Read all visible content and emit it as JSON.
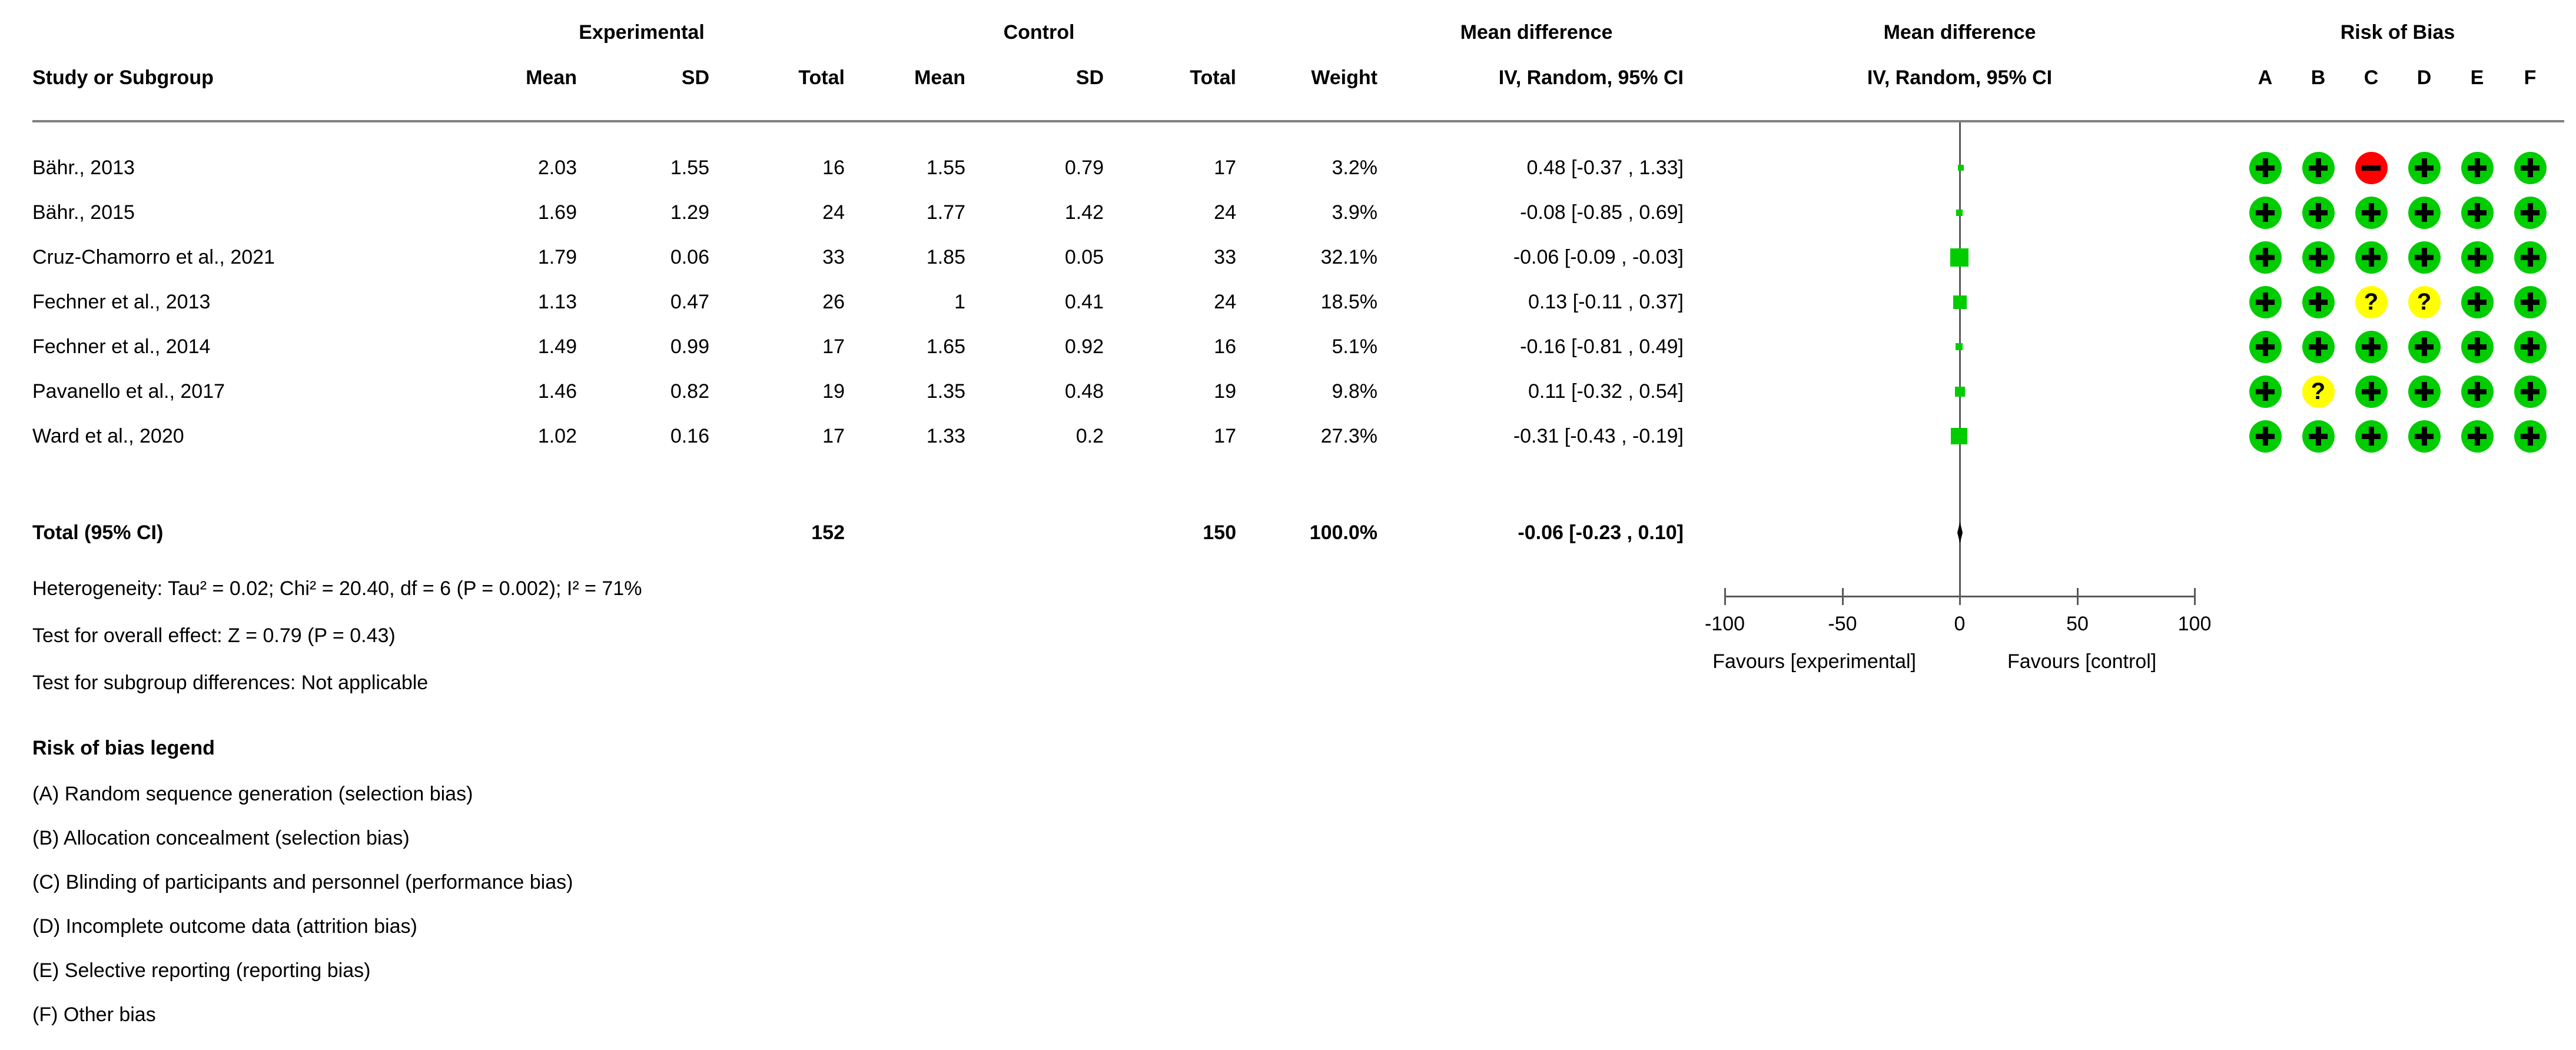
{
  "group_headers": {
    "experimental": "Experimental",
    "control": "Control",
    "mean_difference_text": "Mean difference",
    "mean_difference_plot": "Mean difference",
    "risk_of_bias": "Risk of Bias"
  },
  "col_headers": {
    "study": "Study or Subgroup",
    "mean": "Mean",
    "sd": "SD",
    "total": "Total",
    "weight": "Weight",
    "iv_random": "IV, Random, 95% CI",
    "iv_random_plot": "IV, Random, 95% CI",
    "rob_letters": [
      "A",
      "B",
      "C",
      "D",
      "E",
      "F"
    ]
  },
  "rows": [
    {
      "study": "Bähr., 2013",
      "mean_e": "2.03",
      "sd_e": "1.55",
      "total_e": "16",
      "mean_c": "1.55",
      "sd_c": "0.79",
      "total_c": "17",
      "weight": "3.2%",
      "ci": "0.48 [-0.37 , 1.33]",
      "effect": 0.48,
      "rob": [
        "low",
        "low",
        "high",
        "low",
        "low",
        "low"
      ]
    },
    {
      "study": "Bähr., 2015",
      "mean_e": "1.69",
      "sd_e": "1.29",
      "total_e": "24",
      "mean_c": "1.77",
      "sd_c": "1.42",
      "total_c": "24",
      "weight": "3.9%",
      "ci": "-0.08 [-0.85 , 0.69]",
      "effect": -0.08,
      "rob": [
        "low",
        "low",
        "low",
        "low",
        "low",
        "low"
      ]
    },
    {
      "study": "Cruz-Chamorro et al., 2021",
      "mean_e": "1.79",
      "sd_e": "0.06",
      "total_e": "33",
      "mean_c": "1.85",
      "sd_c": "0.05",
      "total_c": "33",
      "weight": "32.1%",
      "ci": "-0.06 [-0.09 , -0.03]",
      "effect": -0.06,
      "rob": [
        "low",
        "low",
        "low",
        "low",
        "low",
        "low"
      ]
    },
    {
      "study": "Fechner et al., 2013",
      "mean_e": "1.13",
      "sd_e": "0.47",
      "total_e": "26",
      "mean_c": "1",
      "sd_c": "0.41",
      "total_c": "24",
      "weight": "18.5%",
      "ci": "0.13 [-0.11 , 0.37]",
      "effect": 0.13,
      "rob": [
        "low",
        "low",
        "unclear",
        "unclear",
        "low",
        "low"
      ]
    },
    {
      "study": "Fechner et al., 2014",
      "mean_e": "1.49",
      "sd_e": "0.99",
      "total_e": "17",
      "mean_c": "1.65",
      "sd_c": "0.92",
      "total_c": "16",
      "weight": "5.1%",
      "ci": "-0.16 [-0.81 , 0.49]",
      "effect": -0.16,
      "rob": [
        "low",
        "low",
        "low",
        "low",
        "low",
        "low"
      ]
    },
    {
      "study": "Pavanello et al., 2017",
      "mean_e": "1.46",
      "sd_e": "0.82",
      "total_e": "19",
      "mean_c": "1.35",
      "sd_c": "0.48",
      "total_c": "19",
      "weight": "9.8%",
      "ci": "0.11 [-0.32 , 0.54]",
      "effect": 0.11,
      "rob": [
        "low",
        "unclear",
        "low",
        "low",
        "low",
        "low"
      ]
    },
    {
      "study": "Ward et al., 2020",
      "mean_e": "1.02",
      "sd_e": "0.16",
      "total_e": "17",
      "mean_c": "1.33",
      "sd_c": "0.2",
      "total_c": "17",
      "weight": "27.3%",
      "ci": "-0.31 [-0.43 , -0.19]",
      "effect": -0.31,
      "rob": [
        "low",
        "low",
        "low",
        "low",
        "low",
        "low"
      ]
    }
  ],
  "total_row": {
    "label": "Total (95% CI)",
    "total_e": "152",
    "total_c": "150",
    "weight": "100.0%",
    "ci": "-0.06 [-0.23 , 0.10]",
    "effect": -0.06
  },
  "footer": {
    "heterogeneity": "Heterogeneity: Tau² = 0.02; Chi² = 20.40, df = 6 (P = 0.002); I² = 71%",
    "overall_effect": "Test for overall effect: Z = 0.79 (P = 0.43)",
    "subgroup_differences": "Test for subgroup differences: Not applicable"
  },
  "axis": {
    "tick_labels": [
      "-100",
      "-50",
      "0",
      "50",
      "100"
    ],
    "tick_values": [
      -100,
      -50,
      0,
      50,
      100
    ],
    "favours_left": "Favours [experimental]",
    "favours_right": "Favours [control]"
  },
  "legend": {
    "title": "Risk of bias legend",
    "items": [
      "(A) Random sequence generation (selection bias)",
      "(B) Allocation concealment (selection bias)",
      "(C) Blinding of participants and personnel (performance bias)",
      "(D) Incomplete outcome data (attrition bias)",
      "(E) Selective reporting (reporting bias)",
      "(F) Other bias"
    ]
  },
  "risk_of_bias_glyphs": {
    "low": "+",
    "high": "−",
    "unclear": "?"
  },
  "colors": {
    "low_risk": "#00CC00",
    "high_risk": "#FF0000",
    "unclear_risk": "#FFFF00",
    "marker_green": "#00CC00",
    "line_gray": "#595959",
    "separator_gray": "#808080"
  },
  "chart_data": {
    "type": "scatter",
    "subtype": "forest-plot-mean-difference",
    "title": "Mean difference, IV, Random, 95% CI",
    "categories": [
      "Bähr., 2013",
      "Bähr., 2015",
      "Cruz-Chamorro et al., 2021",
      "Fechner et al., 2013",
      "Fechner et al., 2014",
      "Pavanello et al., 2017",
      "Ward et al., 2020"
    ],
    "series": [
      {
        "name": "mean_difference",
        "values": [
          0.48,
          -0.08,
          -0.06,
          0.13,
          -0.16,
          0.11,
          -0.31
        ]
      },
      {
        "name": "ci_lower",
        "values": [
          -0.37,
          -0.85,
          -0.09,
          -0.11,
          -0.81,
          -0.32,
          -0.43
        ]
      },
      {
        "name": "ci_upper",
        "values": [
          1.33,
          0.69,
          -0.03,
          0.37,
          0.49,
          0.54,
          -0.19
        ]
      },
      {
        "name": "weight_pct",
        "values": [
          3.2,
          3.9,
          32.1,
          18.5,
          5.1,
          9.8,
          27.3
        ]
      },
      {
        "name": "experimental_mean",
        "values": [
          2.03,
          1.69,
          1.79,
          1.13,
          1.49,
          1.46,
          1.02
        ]
      },
      {
        "name": "experimental_sd",
        "values": [
          1.55,
          1.29,
          0.06,
          0.47,
          0.99,
          0.82,
          0.16
        ]
      },
      {
        "name": "experimental_total",
        "values": [
          16,
          24,
          33,
          26,
          17,
          19,
          17
        ]
      },
      {
        "name": "control_mean",
        "values": [
          1.55,
          1.77,
          1.85,
          1,
          1.65,
          1.35,
          1.33
        ]
      },
      {
        "name": "control_sd",
        "values": [
          0.79,
          1.42,
          0.05,
          0.41,
          0.92,
          0.48,
          0.2
        ]
      },
      {
        "name": "control_total",
        "values": [
          17,
          24,
          33,
          24,
          16,
          19,
          17
        ]
      }
    ],
    "total": {
      "effect": -0.06,
      "ci_lower": -0.23,
      "ci_upper": 0.1,
      "experimental_total": 152,
      "control_total": 150,
      "weight_pct": 100.0
    },
    "xlabel_left": "Favours [experimental]",
    "xlabel_right": "Favours [control]",
    "xlim": [
      -100,
      100
    ],
    "xticks": [
      -100,
      -50,
      0,
      50,
      100
    ],
    "grid": false,
    "legend_position": "none"
  }
}
